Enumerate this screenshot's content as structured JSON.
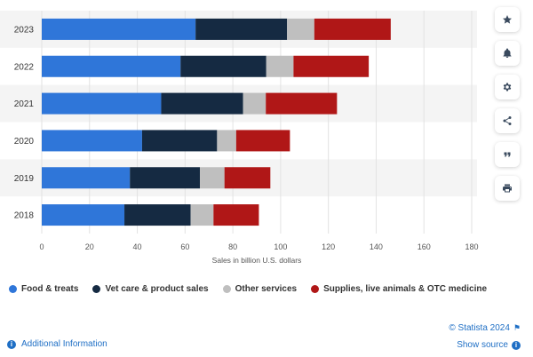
{
  "chart_data": {
    "type": "bar",
    "orientation": "horizontal",
    "stacked": true,
    "categories": [
      "2023",
      "2022",
      "2021",
      "2020",
      "2019",
      "2018"
    ],
    "series": [
      {
        "name": "Food & treats",
        "color": "#2f76d9",
        "values": [
          64.4,
          58.1,
          50.0,
          42.0,
          36.9,
          34.6
        ]
      },
      {
        "name": "Vet care & product sales",
        "color": "#152a42",
        "values": [
          38.3,
          35.9,
          34.3,
          31.4,
          29.3,
          27.7
        ]
      },
      {
        "name": "Other services",
        "color": "#bfbfbf",
        "values": [
          11.4,
          11.4,
          9.5,
          8.0,
          10.3,
          9.6
        ]
      },
      {
        "name": "Supplies, live animals & OTC medicine",
        "color": "#b01717",
        "values": [
          32.0,
          31.5,
          29.8,
          22.5,
          19.2,
          19.0
        ]
      }
    ],
    "xlim": [
      0,
      180
    ],
    "xticks": [
      0,
      20,
      40,
      60,
      80,
      100,
      120,
      140,
      160,
      180
    ],
    "xlabel": "Sales in billion U.S. dollars",
    "ylabel": "",
    "grid": true,
    "legend_position": "bottom-left"
  },
  "toolbar": {
    "icons": [
      "star-icon",
      "bell-icon",
      "gear-icon",
      "share-icon",
      "quote-icon",
      "print-icon"
    ]
  },
  "footer": {
    "additional_info": "Additional Information",
    "copyright": "© Statista 2024",
    "show_source": "Show source"
  }
}
